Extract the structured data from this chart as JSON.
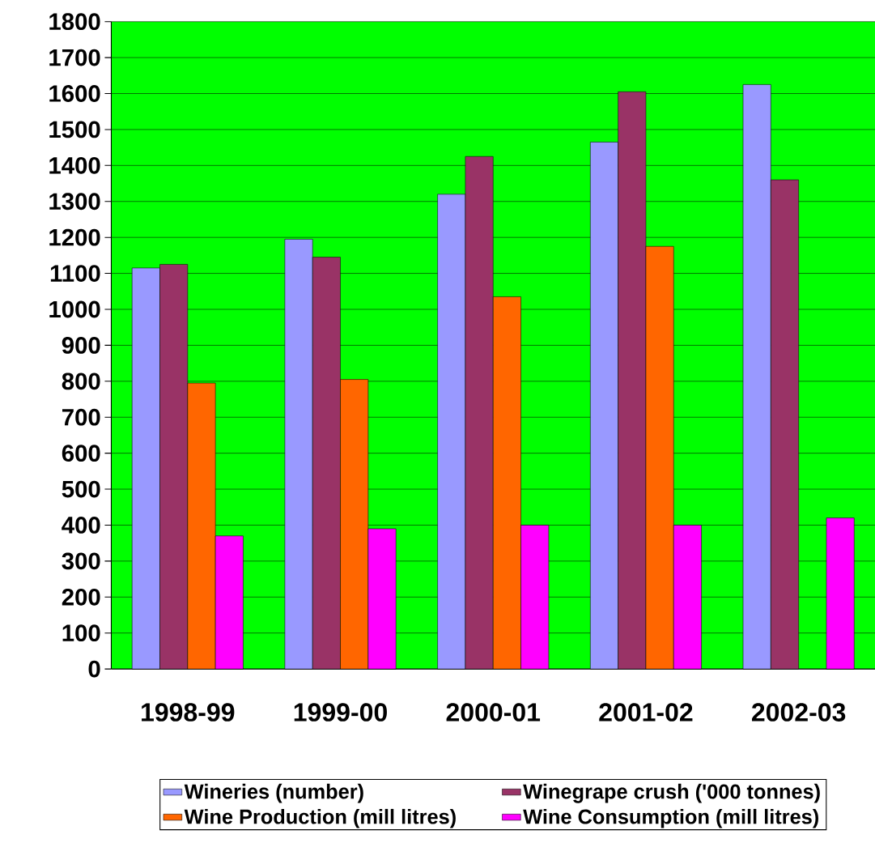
{
  "chart_data": {
    "type": "bar",
    "categories": [
      "1998-99",
      "1999-00",
      "2000-01",
      "2001-02",
      "2002-03"
    ],
    "series": [
      {
        "name": "Wineries (number)",
        "color": "#9999ff",
        "values": [
          1115,
          1195,
          1320,
          1465,
          1625
        ]
      },
      {
        "name": "Winegrape crush ('000 tonnes)",
        "color": "#993366",
        "values": [
          1125,
          1145,
          1425,
          1605,
          1360
        ]
      },
      {
        "name": "Wine Production (mill litres)",
        "color": "#ff6600",
        "values": [
          795,
          805,
          1035,
          1175,
          null
        ]
      },
      {
        "name": "Wine Consumption (mill litres)",
        "color": "#ff00ff",
        "values": [
          370,
          390,
          400,
          400,
          420
        ]
      }
    ],
    "ylim": [
      0,
      1800
    ],
    "yticks": [
      0,
      100,
      200,
      300,
      400,
      500,
      600,
      700,
      800,
      900,
      1000,
      1100,
      1200,
      1300,
      1400,
      1500,
      1600,
      1700,
      1800
    ],
    "grid": "y",
    "legend": "bottom"
  }
}
